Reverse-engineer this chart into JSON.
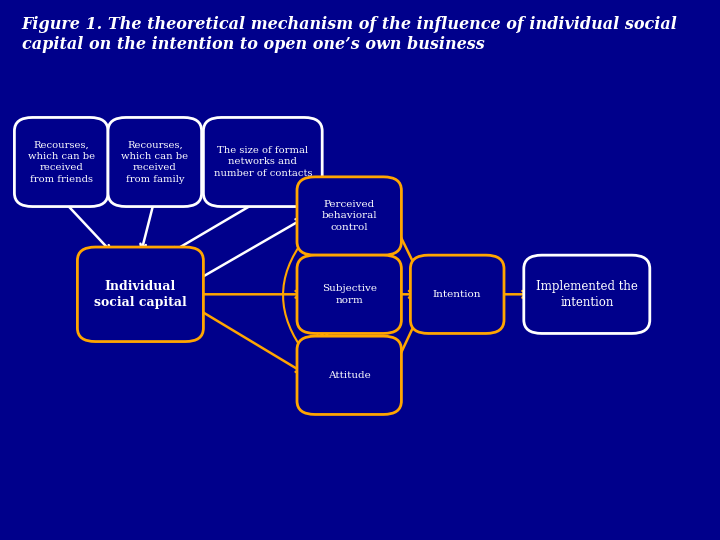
{
  "background_color": "#00008B",
  "title_line1": "Figure 1. The theoretical mechanism of the influence of individual social",
  "title_line2": "capital on the intention to open one’s own business",
  "title_color": "#FFFFFF",
  "title_fontsize": 11.5,
  "box_facecolor": "#00008B",
  "box_edgecolor_gold": "#FFA500",
  "box_edgecolor_white": "#FFFFFF",
  "arrow_color_white": "#FFFFFF",
  "arrow_color_gold": "#FFA500",
  "positions": {
    "friends": [
      0.085,
      0.7,
      0.1,
      0.135
    ],
    "family": [
      0.215,
      0.7,
      0.1,
      0.135
    ],
    "formal": [
      0.365,
      0.7,
      0.135,
      0.135
    ],
    "isc": [
      0.195,
      0.455,
      0.145,
      0.145
    ],
    "pbc": [
      0.485,
      0.6,
      0.115,
      0.115
    ],
    "sn": [
      0.485,
      0.455,
      0.115,
      0.115
    ],
    "att": [
      0.485,
      0.305,
      0.115,
      0.115
    ],
    "int": [
      0.635,
      0.455,
      0.1,
      0.115
    ],
    "impl": [
      0.815,
      0.455,
      0.145,
      0.115
    ]
  },
  "texts": {
    "friends": "Recourses,\nwhich can be\nreceived\nfrom friends",
    "family": "Recourses,\nwhich can be\nreceived\nfrom family",
    "formal": "The size of formal\nnetworks and\nnumber of contacts",
    "isc": "Individual\nsocial capital",
    "pbc": "Perceived\nbehavioral\ncontrol",
    "sn": "Subjective\nnorm",
    "att": "Attitude",
    "int": "Intention",
    "impl": "Implemented the\nintention"
  },
  "edges": {
    "friends": "white",
    "family": "white",
    "formal": "white",
    "isc": "gold",
    "pbc": "gold",
    "sn": "gold",
    "att": "gold",
    "int": "gold",
    "impl": "white"
  },
  "bold": {
    "isc": true
  },
  "fontsizes": {
    "friends": 7.2,
    "family": 7.2,
    "formal": 7.2,
    "isc": 9.0,
    "pbc": 7.5,
    "sn": 7.5,
    "att": 7.5,
    "int": 7.5,
    "impl": 8.5
  }
}
